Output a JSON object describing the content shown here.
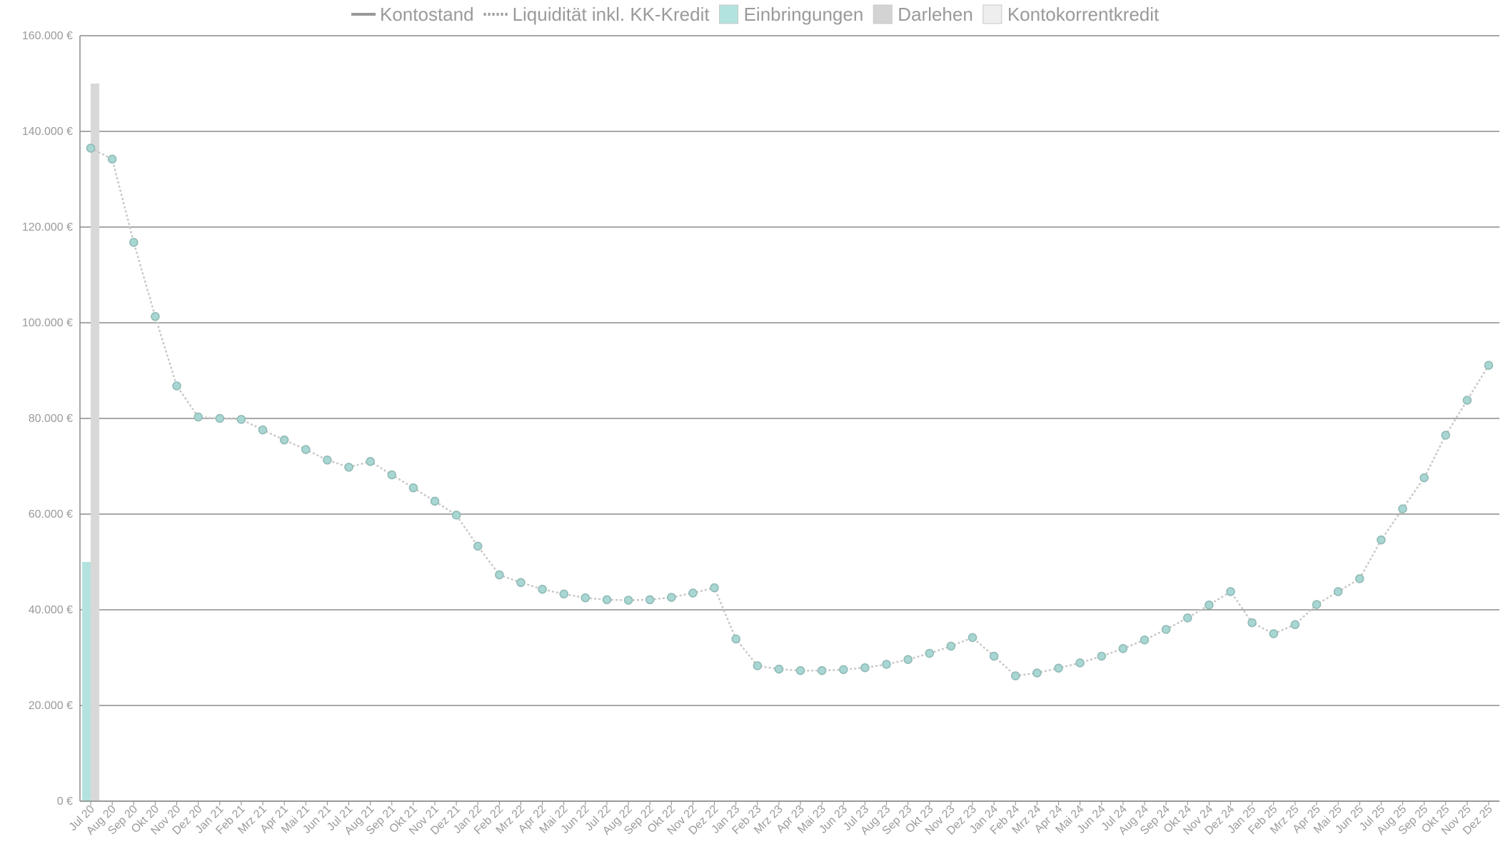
{
  "chart_data": {
    "type": "line",
    "title": "",
    "xlabel": "",
    "ylabel": "",
    "ylim": [
      0,
      160000
    ],
    "y_ticks": [
      0,
      20000,
      40000,
      60000,
      80000,
      100000,
      120000,
      140000,
      160000
    ],
    "y_tick_labels": [
      "0 €",
      "20.000 €",
      "40.000 €",
      "60.000 €",
      "80.000 €",
      "100.000 €",
      "120.000 €",
      "140.000 €",
      "160.000 €"
    ],
    "grid": true,
    "legend_position": "top-center",
    "legend": [
      {
        "label": "Kontostand",
        "symbol": "line-solid",
        "color": "#999999"
      },
      {
        "label": "Liquidität inkl. KK-Kredit",
        "symbol": "line-dotted",
        "color": "#999999"
      },
      {
        "label": "Einbringungen",
        "symbol": "box",
        "color": "#b3e3df"
      },
      {
        "label": "Darlehen",
        "symbol": "box",
        "color": "#d3d3d3"
      },
      {
        "label": "Kontokorrentkredit",
        "symbol": "box",
        "color": "#eeeeee"
      }
    ],
    "categories": [
      "Jul 20",
      "Aug 20",
      "Sep 20",
      "Okt 20",
      "Nov 20",
      "Dez 20",
      "Jan 21",
      "Feb 21",
      "Mrz 21",
      "Apr 21",
      "Mai 21",
      "Jun 21",
      "Jul 21",
      "Aug 21",
      "Sep 21",
      "Okt 21",
      "Nov 21",
      "Dez 21",
      "Jan 22",
      "Feb 22",
      "Mrz 22",
      "Apr 22",
      "Mai 22",
      "Jun 22",
      "Jul 22",
      "Aug 22",
      "Sep 22",
      "Okt 22",
      "Nov 22",
      "Dez 22",
      "Jan 23",
      "Feb 23",
      "Mrz 23",
      "Apr 23",
      "Mai 23",
      "Jun 23",
      "Jul 23",
      "Aug 23",
      "Sep 23",
      "Okt 23",
      "Nov 23",
      "Dez 23",
      "Jan 24",
      "Feb 24",
      "Mrz 24",
      "Apr 24",
      "Mai 24",
      "Jun 24",
      "Jul 24",
      "Aug 24",
      "Sep 24",
      "Okt 24",
      "Nov 24",
      "Dez 24",
      "Jan 25",
      "Feb 25",
      "Mrz 25",
      "Apr 25",
      "Mai 25",
      "Jun 25",
      "Jul 25",
      "Aug 25",
      "Sep 25",
      "Okt 25",
      "Nov 25",
      "Dez 25"
    ],
    "series": [
      {
        "name": "Liquidität inkl. KK-Kredit",
        "kind": "line",
        "style": "dotted",
        "color": "#c8c8c8",
        "marker_color": "#a8d6d2",
        "values": [
          136500,
          134200,
          116800,
          101300,
          86800,
          80300,
          80000,
          79800,
          77600,
          75500,
          73500,
          71300,
          69800,
          71000,
          68200,
          65500,
          62700,
          59800,
          53300,
          47300,
          45700,
          44300,
          43300,
          42500,
          42100,
          42000,
          42100,
          42600,
          43500,
          44600,
          33900,
          28300,
          27600,
          27300,
          27300,
          27500,
          27900,
          28600,
          29600,
          30900,
          32400,
          34200,
          30300,
          26200,
          26800,
          27800,
          28900,
          30300,
          31900,
          33700,
          35900,
          38300,
          41000,
          43800,
          37300,
          35000,
          36900,
          41100,
          43800,
          46500,
          54600,
          61100,
          67600,
          76500,
          83800,
          91100
        ]
      },
      {
        "name": "Einbringungen",
        "kind": "bar",
        "color": "#b3e3df",
        "values": [
          50000,
          0,
          0,
          0,
          0,
          0,
          0,
          0,
          0,
          0,
          0,
          0,
          0,
          0,
          0,
          0,
          0,
          0,
          0,
          0,
          0,
          0,
          0,
          0,
          0,
          0,
          0,
          0,
          0,
          0,
          0,
          0,
          0,
          0,
          0,
          0,
          0,
          0,
          0,
          0,
          0,
          0,
          0,
          0,
          0,
          0,
          0,
          0,
          0,
          0,
          0,
          0,
          0,
          0,
          0,
          0,
          0,
          0,
          0,
          0,
          0,
          0,
          0,
          0,
          0,
          0
        ]
      },
      {
        "name": "Darlehen",
        "kind": "bar",
        "color": "#d8d8d8",
        "values": [
          150000,
          0,
          0,
          0,
          0,
          0,
          0,
          0,
          0,
          0,
          0,
          0,
          0,
          0,
          0,
          0,
          0,
          0,
          0,
          0,
          0,
          0,
          0,
          0,
          0,
          0,
          0,
          0,
          0,
          0,
          0,
          0,
          0,
          0,
          0,
          0,
          0,
          0,
          0,
          0,
          0,
          0,
          0,
          0,
          0,
          0,
          0,
          0,
          0,
          0,
          0,
          0,
          0,
          0,
          0,
          0,
          0,
          0,
          0,
          0,
          0,
          0,
          0,
          0,
          0,
          0
        ]
      }
    ]
  }
}
